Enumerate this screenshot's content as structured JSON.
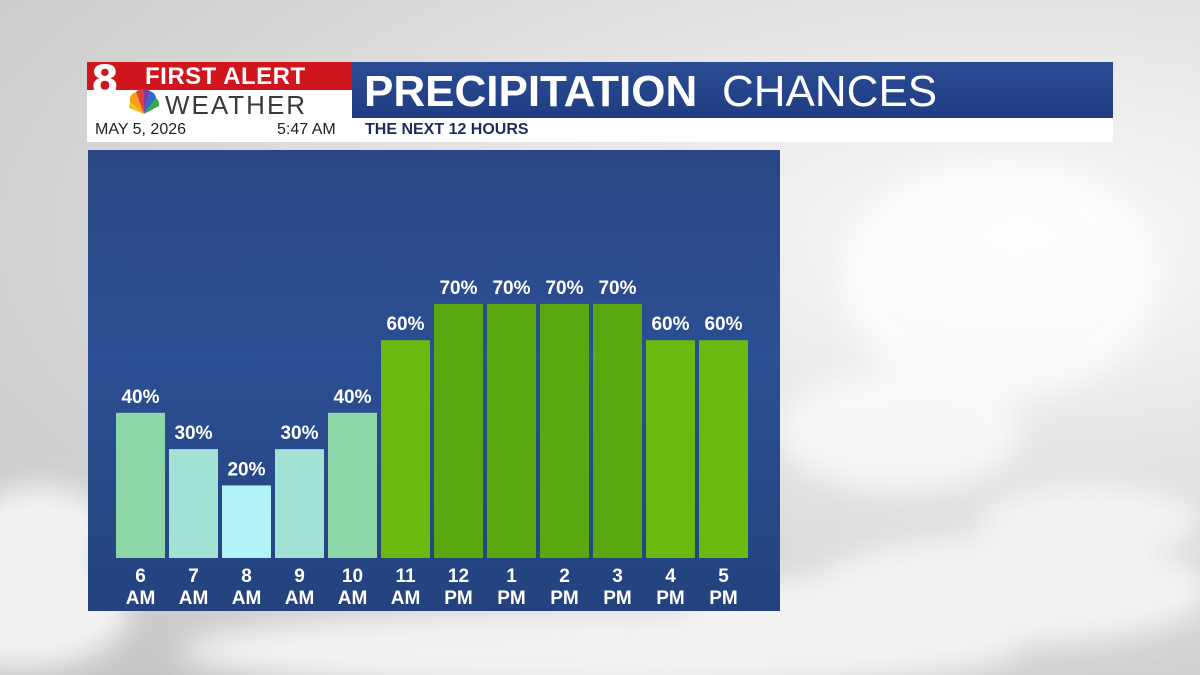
{
  "header": {
    "logo_number": "8",
    "logo_line1": "FIRST ALERT",
    "logo_line2": "WEATHER",
    "title_bold": "PRECIPITATION",
    "title_light": "CHANCES",
    "date": "MAY 5, 2026",
    "time": "5:47 AM",
    "subtitle": "THE NEXT 12 HOURS"
  },
  "colors": {
    "title_bar": "#24438a",
    "logo_red": "#d0151c",
    "panel_bg": "#2a4a8c",
    "low_20": "#b3f2f6",
    "low_30": "#a2e2d4",
    "low_40": "#8cd6a8",
    "high_60": "#6bb90f",
    "high_70": "#5aa80f"
  },
  "chart_data": {
    "type": "bar",
    "categories": [
      [
        "6",
        "AM"
      ],
      [
        "7",
        "AM"
      ],
      [
        "8",
        "AM"
      ],
      [
        "9",
        "AM"
      ],
      [
        "10",
        "AM"
      ],
      [
        "11",
        "AM"
      ],
      [
        "12",
        "PM"
      ],
      [
        "1",
        "PM"
      ],
      [
        "2",
        "PM"
      ],
      [
        "3",
        "PM"
      ],
      [
        "4",
        "PM"
      ],
      [
        "5",
        "PM"
      ]
    ],
    "values": [
      40,
      30,
      20,
      30,
      40,
      60,
      70,
      70,
      70,
      70,
      60,
      60
    ],
    "value_labels": [
      "40%",
      "30%",
      "20%",
      "30%",
      "40%",
      "60%",
      "70%",
      "70%",
      "70%",
      "70%",
      "60%",
      "60%"
    ],
    "unit": "%",
    "ylim": [
      0,
      100
    ],
    "grid": false,
    "legend": "none"
  }
}
